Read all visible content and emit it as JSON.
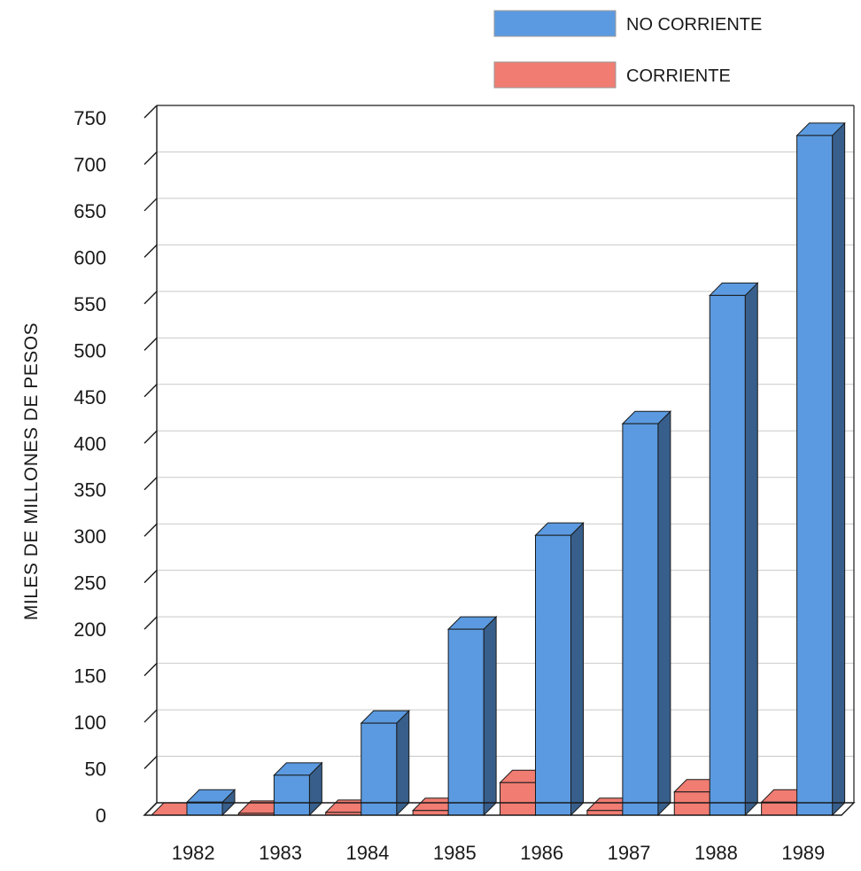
{
  "chart_data": {
    "type": "bar",
    "title": "",
    "xlabel": "",
    "ylabel": "MILES DE MILLONES DE PESOS",
    "ylim": [
      0,
      750
    ],
    "yticks": [
      0,
      50,
      100,
      150,
      200,
      250,
      300,
      350,
      400,
      450,
      500,
      550,
      600,
      650,
      700,
      750
    ],
    "categories": [
      "1982",
      "1983",
      "1984",
      "1985",
      "1986",
      "1987",
      "1988",
      "1989"
    ],
    "series": [
      {
        "name": "CORRIENTE",
        "color": "#f07c72",
        "values": [
          0,
          2,
          3,
          5,
          35,
          5,
          25,
          14
        ]
      },
      {
        "name": "NO CORRIENTE",
        "color": "#5b9ae0",
        "values": [
          14,
          43,
          99,
          200,
          301,
          421,
          559,
          731
        ]
      }
    ],
    "legend_position": "top-right",
    "grid": true,
    "style": "3d-bars"
  }
}
